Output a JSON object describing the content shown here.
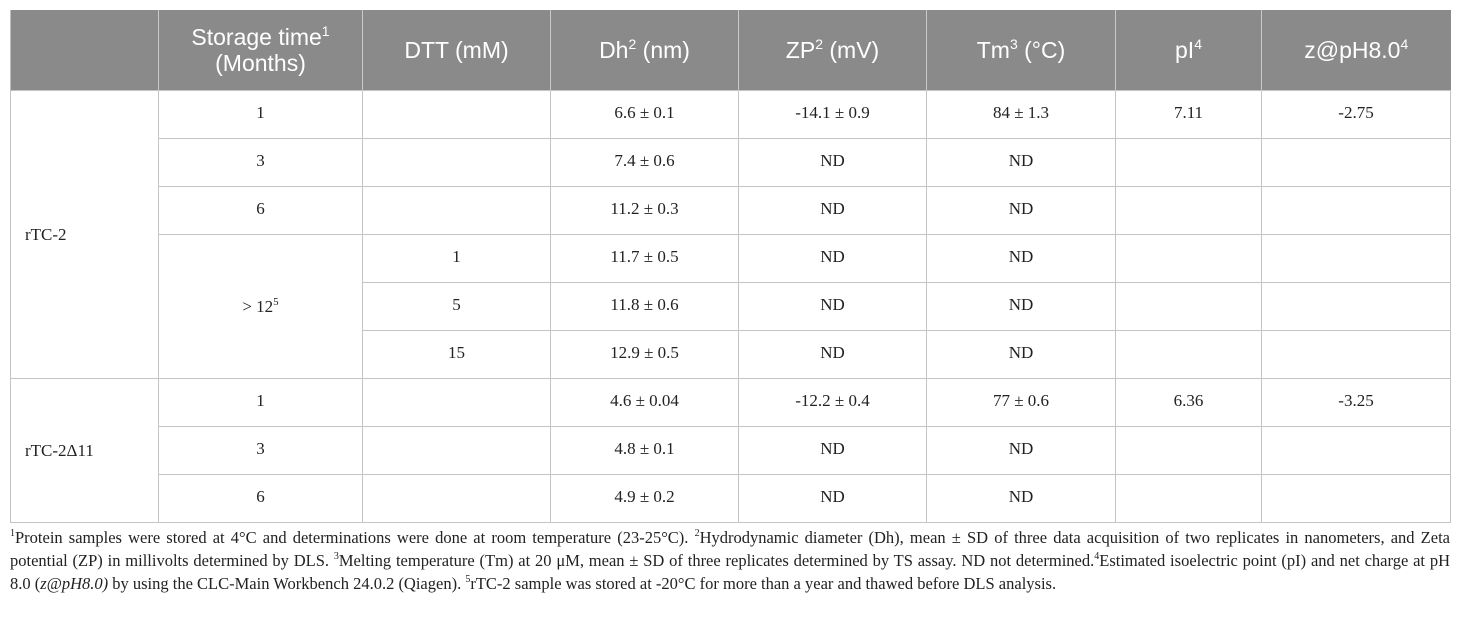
{
  "headers": {
    "storage": "Storage time",
    "storage_sup": "1",
    "storage_unit": " (Months)",
    "dtt": "DTT (mM)",
    "dh": "Dh",
    "dh_sup": "2",
    "dh_unit": " (nm)",
    "zp": "ZP",
    "zp_sup": "2",
    "zp_unit": " (mV)",
    "tm": "Tm",
    "tm_sup": "3",
    "tm_unit": " (°C)",
    "pi": "pI",
    "pi_sup": "4",
    "z": "z@pH8.0",
    "z_sup": "4"
  },
  "samples": {
    "rtc2": "rTC-2",
    "rtc2d11": "rTC-2Δ11"
  },
  "rows": [
    {
      "time": "1",
      "dtt": "",
      "dh": "6.6 ± 0.1",
      "zp": "-14.1 ± 0.9",
      "tm": "84 ± 1.3",
      "pi": "7.11",
      "z": "-2.75"
    },
    {
      "time": "3",
      "dtt": "",
      "dh": "7.4 ± 0.6",
      "zp": "ND",
      "tm": "ND",
      "pi": "",
      "z": ""
    },
    {
      "time": "6",
      "dtt": "",
      "dh": "11.2 ± 0.3",
      "zp": "ND",
      "tm": "ND",
      "pi": "",
      "z": ""
    },
    {
      "time": "> 12",
      "time_sup": "5",
      "dtt": "1",
      "dh": "11.7 ± 0.5",
      "zp": "ND",
      "tm": "ND",
      "pi": "",
      "z": ""
    },
    {
      "time": "",
      "dtt": "5",
      "dh": "11.8 ± 0.6",
      "zp": "ND",
      "tm": "ND",
      "pi": "",
      "z": ""
    },
    {
      "time": "",
      "dtt": "15",
      "dh": "12.9 ± 0.5",
      "zp": "ND",
      "tm": "ND",
      "pi": "",
      "z": ""
    },
    {
      "time": "1",
      "dtt": "",
      "dh": "4.6 ± 0.04",
      "zp": "-12.2 ± 0.4",
      "tm": "77 ± 0.6",
      "pi": "6.36",
      "z": "-3.25"
    },
    {
      "time": "3",
      "dtt": "",
      "dh": "4.8 ± 0.1",
      "zp": "ND",
      "tm": "ND",
      "pi": "",
      "z": ""
    },
    {
      "time": "6",
      "dtt": "",
      "dh": "4.9 ± 0.2",
      "zp": "ND",
      "tm": "ND",
      "pi": "",
      "z": ""
    }
  ],
  "footnotes": {
    "n1_sup": "1",
    "n1": "Protein samples were stored at 4°C and determinations were done at room temperature (23-25°C). ",
    "n2_sup": "2",
    "n2": "Hydrodynamic diameter (Dh), mean ± SD of three data acquisition of two replicates in nanometers, and Zeta potential (ZP) in millivolts determined by DLS. ",
    "n3_sup": "3",
    "n3": "Melting temperature (Tm) at 20 μM, mean ± SD of three replicates determined by TS assay. ND not determined.",
    "n4_sup": "4",
    "n4a": "Estimated isoelectric point (pI) and net charge at pH 8.0 (",
    "n4_italic": "z@pH8.0)",
    "n4b": " by using the CLC-Main Workbench 24.0.2 (Qiagen). ",
    "n5_sup": "5",
    "n5": "rTC-2 sample was stored at -20°C for more than a year and thawed before DLS analysis."
  }
}
